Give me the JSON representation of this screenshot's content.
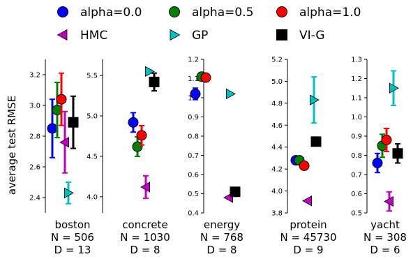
{
  "legend": [
    {
      "label": "alpha=0.0",
      "marker": "circle",
      "color": "#0000ff"
    },
    {
      "label": "alpha=0.5",
      "marker": "circle",
      "color": "#008000"
    },
    {
      "label": "alpha=1.0",
      "marker": "circle",
      "color": "#ff0000"
    },
    {
      "label": "HMC",
      "marker": "triangle-left",
      "color": "#bf00bf"
    },
    {
      "label": "GP",
      "marker": "triangle-right",
      "color": "#00bfbf"
    },
    {
      "label": "VI-G",
      "marker": "square",
      "color": "#000000"
    }
  ],
  "ylabel": "average test RMSE",
  "chart_data": [
    {
      "type": "scatter",
      "dataset": "boston",
      "n_label": "N = 506",
      "d_label": "D = 13",
      "ylim": [
        2.3,
        3.3
      ],
      "yticks": [
        2.4,
        2.6,
        2.8,
        3.0,
        3.2
      ],
      "tick_labels": [
        "2.4",
        "2.6",
        "2.8",
        "3.0",
        "3.2"
      ],
      "series": [
        {
          "method": "alpha=0.0",
          "value": 2.85,
          "error": 0.19
        },
        {
          "method": "alpha=0.5",
          "value": 2.97,
          "error": 0.18
        },
        {
          "method": "alpha=1.0",
          "value": 3.04,
          "error": 0.17
        },
        {
          "method": "HMC",
          "value": 2.76,
          "error": 0.2
        },
        {
          "method": "GP",
          "value": 2.43,
          "error": 0.07
        },
        {
          "method": "VI-G",
          "value": 2.89,
          "error": 0.17
        }
      ]
    },
    {
      "type": "scatter",
      "dataset": "concrete",
      "n_label": "N = 1030",
      "d_label": "D = 8",
      "ylim": [
        3.8,
        5.7
      ],
      "yticks": [
        4.0,
        4.5,
        5.0,
        5.5
      ],
      "tick_labels": [
        "4.0",
        "4.5",
        "5.0",
        "5.5"
      ],
      "series": [
        {
          "method": "alpha=0.0",
          "value": 4.92,
          "error": 0.12
        },
        {
          "method": "alpha=0.5",
          "value": 4.62,
          "error": 0.12
        },
        {
          "method": "alpha=1.0",
          "value": 4.76,
          "error": 0.12
        },
        {
          "method": "HMC",
          "value": 4.12,
          "error": 0.14
        },
        {
          "method": "GP",
          "value": 5.55,
          "error": 0.02
        },
        {
          "method": "VI-G",
          "value": 5.42,
          "error": 0.11
        }
      ]
    },
    {
      "type": "scatter",
      "dataset": "energy",
      "n_label": "N = 768",
      "d_label": "D = 8",
      "ylim": [
        0.4,
        1.2
      ],
      "yticks": [
        0.4,
        0.5,
        0.6,
        0.7,
        0.8,
        0.9,
        1.0,
        1.1,
        1.2
      ],
      "tick_labels": [
        "0.4",
        "0.5",
        "0.6",
        "0.7",
        "0.8",
        "0.9",
        "1.0",
        "1.1",
        "1.2"
      ],
      "series": [
        {
          "method": "alpha=0.0",
          "value": 1.02,
          "error": 0.03
        },
        {
          "method": "alpha=0.5",
          "value": 1.11,
          "error": 0.01
        },
        {
          "method": "alpha=1.0",
          "value": 1.105,
          "error": 0.01
        },
        {
          "method": "HMC",
          "value": 0.48,
          "error": 0.0
        },
        {
          "method": "GP",
          "value": 1.02,
          "error": 0.0
        },
        {
          "method": "VI-G",
          "value": 0.51,
          "error": 0.01
        }
      ]
    },
    {
      "type": "scatter",
      "dataset": "protein",
      "n_label": "N = 45730",
      "d_label": "D = 9",
      "ylim": [
        3.8,
        5.2
      ],
      "yticks": [
        3.8,
        4.0,
        4.2,
        4.4,
        4.6,
        4.8,
        5.0,
        5.2
      ],
      "tick_labels": [
        "3.8",
        "4.0",
        "4.2",
        "4.4",
        "4.6",
        "4.8",
        "5.0",
        "5.2"
      ],
      "series": [
        {
          "method": "alpha=0.0",
          "value": 4.28,
          "error": 0.01
        },
        {
          "method": "alpha=0.5",
          "value": 4.28,
          "error": 0.01
        },
        {
          "method": "alpha=1.0",
          "value": 4.23,
          "error": 0.01
        },
        {
          "method": "HMC",
          "value": 3.91,
          "error": 0.0
        },
        {
          "method": "GP",
          "value": 4.83,
          "error": 0.21
        },
        {
          "method": "VI-G",
          "value": 4.45,
          "error": 0.01
        }
      ]
    },
    {
      "type": "scatter",
      "dataset": "yacht",
      "n_label": "N = 308",
      "d_label": "D = 6",
      "ylim": [
        0.5,
        1.3
      ],
      "yticks": [
        0.5,
        0.6,
        0.7,
        0.8,
        0.9,
        1.0,
        1.1,
        1.2,
        1.3
      ],
      "tick_labels": [
        "0.5",
        "0.6",
        "0.7",
        "0.8",
        "0.9",
        "1.0",
        "1.1",
        "1.2",
        "1.3"
      ],
      "series": [
        {
          "method": "alpha=0.0",
          "value": 0.76,
          "error": 0.05
        },
        {
          "method": "alpha=0.5",
          "value": 0.85,
          "error": 0.06
        },
        {
          "method": "alpha=1.0",
          "value": 0.88,
          "error": 0.06
        },
        {
          "method": "HMC",
          "value": 0.56,
          "error": 0.05
        },
        {
          "method": "GP",
          "value": 1.15,
          "error": 0.09
        },
        {
          "method": "VI-G",
          "value": 0.81,
          "error": 0.05
        }
      ]
    }
  ]
}
